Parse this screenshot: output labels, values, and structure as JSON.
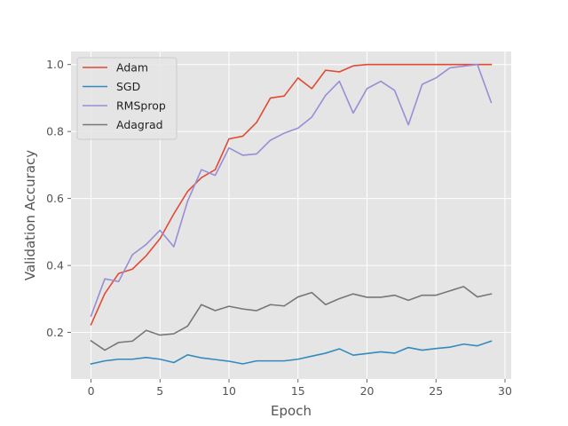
{
  "chart_data": {
    "type": "line",
    "title": "",
    "xlabel": "Epoch",
    "ylabel": "Validation Accuracy",
    "xlim": [
      -1.45,
      30.45
    ],
    "ylim": [
      0.061,
      1.039
    ],
    "xticks": [
      0,
      5,
      10,
      15,
      20,
      25,
      30
    ],
    "yticks": [
      0.2,
      0.4,
      0.6,
      0.8,
      1.0
    ],
    "grid": true,
    "legend_position": "top-left",
    "x": [
      0,
      1,
      2,
      3,
      4,
      5,
      6,
      7,
      8,
      9,
      10,
      11,
      12,
      13,
      14,
      15,
      16,
      17,
      18,
      19,
      20,
      21,
      22,
      23,
      24,
      25,
      26,
      27,
      28,
      29
    ],
    "series": [
      {
        "name": "Adam",
        "color": "#E24A33",
        "values": [
          0.223,
          0.316,
          0.376,
          0.389,
          0.429,
          0.48,
          0.554,
          0.621,
          0.662,
          0.686,
          0.778,
          0.786,
          0.827,
          0.9,
          0.906,
          0.96,
          0.928,
          0.983,
          0.978,
          0.996,
          1.0,
          1.0,
          1.0,
          1.0,
          1.0,
          1.0,
          1.0,
          1.0,
          1.0,
          1.0
        ]
      },
      {
        "name": "SGD",
        "color": "#348ABD",
        "values": [
          0.106,
          0.115,
          0.12,
          0.12,
          0.125,
          0.12,
          0.11,
          0.133,
          0.124,
          0.119,
          0.114,
          0.106,
          0.115,
          0.115,
          0.115,
          0.12,
          0.129,
          0.138,
          0.151,
          0.132,
          0.137,
          0.142,
          0.138,
          0.155,
          0.147,
          0.152,
          0.156,
          0.165,
          0.16,
          0.174
        ]
      },
      {
        "name": "RMSprop",
        "color": "#988ED5",
        "values": [
          0.249,
          0.36,
          0.352,
          0.432,
          0.463,
          0.505,
          0.456,
          0.592,
          0.686,
          0.669,
          0.751,
          0.729,
          0.733,
          0.774,
          0.795,
          0.81,
          0.843,
          0.908,
          0.95,
          0.855,
          0.928,
          0.95,
          0.923,
          0.82,
          0.941,
          0.96,
          0.99,
          0.995,
          1.0,
          0.887
        ]
      },
      {
        "name": "Adagrad",
        "color": "#777777",
        "values": [
          0.175,
          0.147,
          0.17,
          0.174,
          0.206,
          0.192,
          0.196,
          0.219,
          0.283,
          0.265,
          0.278,
          0.27,
          0.265,
          0.283,
          0.279,
          0.306,
          0.319,
          0.283,
          0.301,
          0.315,
          0.305,
          0.305,
          0.311,
          0.296,
          0.311,
          0.311,
          0.324,
          0.337,
          0.306,
          0.315
        ]
      }
    ]
  }
}
